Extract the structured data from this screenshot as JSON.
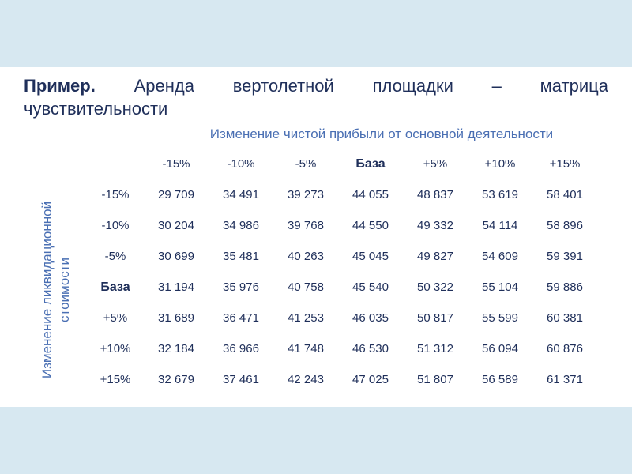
{
  "title": {
    "bold_word": "Пример.",
    "line1_words": [
      "Аренда",
      "вертолетной",
      "площадки",
      "–",
      "матрица"
    ],
    "line2": "чувствительности"
  },
  "column_caption": "Изменение чистой прибыли от основной деятельности",
  "row_caption": "Изменение ликвидационной стоимости",
  "table": {
    "column_headers": [
      "-15%",
      "-10%",
      "-5%",
      "База",
      "+5%",
      "+10%",
      "+15%"
    ],
    "rows": [
      {
        "label": "-15%",
        "values": [
          "29 709",
          "34 491",
          "39 273",
          "44 055",
          "48 837",
          "53 619",
          "58 401"
        ]
      },
      {
        "label": "-10%",
        "values": [
          "30 204",
          "34 986",
          "39 768",
          "44 550",
          "49 332",
          "54 114",
          "58 896"
        ]
      },
      {
        "label": "-5%",
        "values": [
          "30 699",
          "35 481",
          "40 263",
          "45 045",
          "49 827",
          "54 609",
          "59 391"
        ]
      },
      {
        "label": "База",
        "values": [
          "31 194",
          "35 976",
          "40 758",
          "45 540",
          "50 322",
          "55 104",
          "59 886"
        ]
      },
      {
        "label": "+5%",
        "values": [
          "31 689",
          "36 471",
          "41 253",
          "46 035",
          "50 817",
          "55 599",
          "60 381"
        ]
      },
      {
        "label": "+10%",
        "values": [
          "32 184",
          "36 966",
          "41 748",
          "46 530",
          "51 312",
          "56 094",
          "60 876"
        ]
      },
      {
        "label": "+15%",
        "values": [
          "32 679",
          "37 461",
          "42 243",
          "47 025",
          "51 807",
          "56 589",
          "61 371"
        ]
      }
    ]
  },
  "colors": {
    "band": "#d7e8f1",
    "text": "#1f2f5a",
    "caption": "#4a6fb3"
  }
}
